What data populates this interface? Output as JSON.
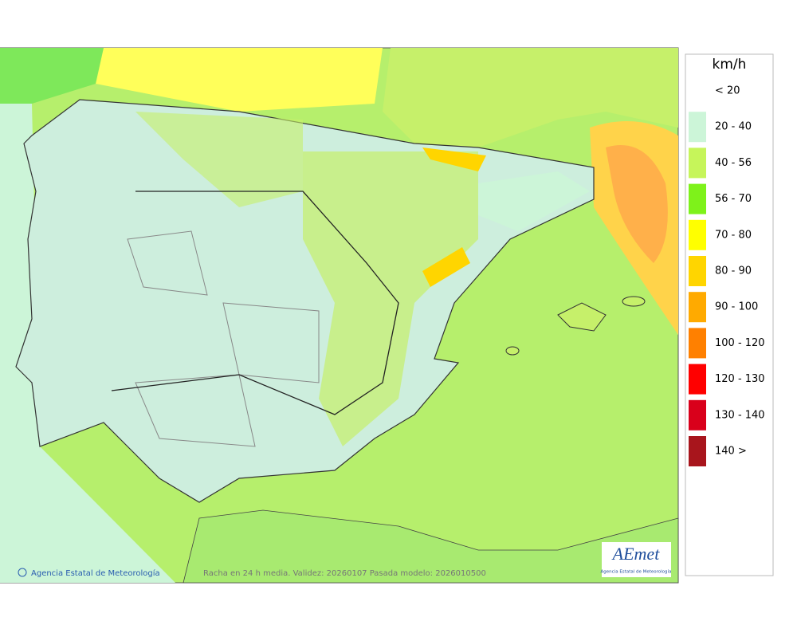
{
  "legend": {
    "title": "km/h",
    "items": [
      {
        "label": "< 20",
        "color": "#ffffff"
      },
      {
        "label": "20 - 40",
        "color": "#ccf5d8"
      },
      {
        "label": "40 - 56",
        "color": "#c6f55a"
      },
      {
        "label": "56 - 70",
        "color": "#7ef21a"
      },
      {
        "label": "70 - 80",
        "color": "#ffff00"
      },
      {
        "label": "80 - 90",
        "color": "#ffd500"
      },
      {
        "label": "90 - 100",
        "color": "#ffaa00"
      },
      {
        "label": "100 - 120",
        "color": "#ff8000"
      },
      {
        "label": "120 - 130",
        "color": "#ff0000"
      },
      {
        "label": "130 - 140",
        "color": "#d9001b"
      },
      {
        "label": "140 >",
        "color": "#a8151c"
      }
    ]
  },
  "footer": {
    "credit": "Agencia Estatal de Meteorología",
    "caption": "Racha en 24 h media. Validez: 20260107 Pasada modelo: 2026010500"
  },
  "logo": {
    "name": "AEmet",
    "subtitle": "Agencia Estatal de Meteorología"
  }
}
